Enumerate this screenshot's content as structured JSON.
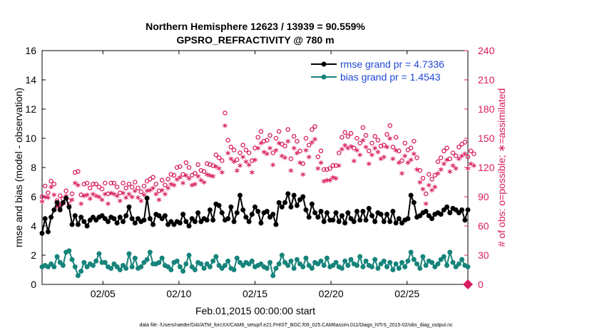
{
  "chart_data": {
    "type": "line",
    "title": "Northern Hemisphere 12623 / 13939 = 90.559%",
    "subtitle": "GPSRO_REFRACTIVITY @ 780 m",
    "xlabel": "Feb.01,2015 00:00:00 start",
    "ylabel_left": "rmse and bias (model - observation)",
    "ylabel_right": "# of obs: o=possible; ∗=assimilated",
    "footnote": "data file: /Users/raeder/DAI/ATM_forcXX/CAM6_setup/f.e21.FHIST_BGC.f09_025.CAM6assim.011/Diags_NTrS_2015-02/obs_diag_output.nc",
    "xlim": [
      1,
      29
    ],
    "ylim_left": [
      0,
      16
    ],
    "ylim_right": [
      0,
      240
    ],
    "xticks": [
      5,
      10,
      15,
      20,
      25
    ],
    "xtick_labels": [
      "02/05",
      "02/10",
      "02/15",
      "02/20",
      "02/25"
    ],
    "yticks_left": [
      "0",
      "2",
      "4",
      "6",
      "8",
      "10",
      "12",
      "14",
      "16"
    ],
    "yticks_right": [
      "0",
      "30",
      "60",
      "90",
      "120",
      "150",
      "180",
      "210",
      "240"
    ],
    "grid": false,
    "legend_position": "top-right",
    "legend": {
      "rmse": "rmse grand pr = 4.7336",
      "bias": "bias grand pr = 1.4543"
    },
    "colors": {
      "rmse": "#000000",
      "bias": "#17847b",
      "obs": "#d81b60",
      "legend_text": "#1f48d6"
    },
    "series": [
      {
        "name": "rmse grand pr = 4.7336",
        "axis": "left",
        "values": [
          3.5,
          4.5,
          3.6,
          4.6,
          5.1,
          5.6,
          5.1,
          5.6,
          5.9,
          5.3,
          4.1,
          4.7,
          4.1,
          4.6,
          4.3,
          4.0,
          4.4,
          4.6,
          4.4,
          4.6,
          4.7,
          4.5,
          4.3,
          4.6,
          4.5,
          4.2,
          4.6,
          4.3,
          4.7,
          5.3,
          4.5,
          4.2,
          4.5,
          4.3,
          4.4,
          5.9,
          4.5,
          4.1,
          4.8,
          4.7,
          4.5,
          4.7,
          4.1,
          4.3,
          4.1,
          4.3,
          4.2,
          4.8,
          4.3,
          4.0,
          4.5,
          4.3,
          4.9,
          4.3,
          4.5,
          4.4,
          5.1,
          4.4,
          5.5,
          5.4,
          4.9,
          4.4,
          4.5,
          5.3,
          4.3,
          4.9,
          6.1,
          5.1,
          4.6,
          4.3,
          4.8,
          5.3,
          5.0,
          4.2,
          4.9,
          5.0,
          4.6,
          4.8,
          4.1,
          5.6,
          5.3,
          5.6,
          6.2,
          5.3,
          6.1,
          5.4,
          5.8,
          6.0,
          5.1,
          4.6,
          5.5,
          4.9,
          4.6,
          5.0,
          4.3,
          4.9,
          4.4,
          4.4,
          4.9,
          4.3,
          4.7,
          4.2,
          4.9,
          4.5,
          4.3,
          5.0,
          4.4,
          5.0,
          4.4,
          5.2,
          4.7,
          4.3,
          4.9,
          4.8,
          4.3,
          4.8,
          4.3,
          5.0,
          4.2,
          4.5,
          4.2,
          4.4,
          4.5,
          6.1,
          5.6,
          4.6,
          4.7,
          4.9,
          5.0,
          4.7,
          4.5,
          4.8,
          4.9,
          4.8,
          5.1,
          5.3,
          4.9,
          5.2,
          5.1,
          4.9,
          5.1,
          4.4,
          5.1
        ]
      },
      {
        "name": "bias grand pr = 1.4543",
        "axis": "left",
        "values": [
          1.2,
          1.3,
          1.2,
          1.4,
          1.2,
          1.9,
          1.5,
          1.3,
          2.2,
          2.3,
          1.7,
          1.2,
          0.6,
          0.9,
          1.5,
          1.2,
          1.4,
          1.3,
          1.6,
          2.1,
          1.5,
          1.5,
          1.2,
          1.1,
          1.4,
          1.2,
          1.0,
          1.3,
          1.1,
          2.1,
          1.2,
          1.8,
          1.1,
          1.2,
          1.5,
          1.7,
          2.2,
          1.4,
          1.4,
          1.5,
          1.8,
          1.3,
          1.2,
          1.0,
          1.5,
          1.6,
          1.2,
          0.9,
          1.4,
          2.0,
          1.2,
          1.0,
          1.5,
          1.4,
          1.1,
          1.4,
          1.2,
          1.6,
          1.9,
          1.3,
          1.1,
          1.3,
          1.6,
          1.1,
          1.0,
          1.8,
          1.5,
          1.3,
          1.5,
          1.4,
          1.6,
          1.2,
          1.3,
          1.4,
          1.2,
          1.1,
          1.5,
          0.6,
          1.1,
          1.4,
          2.0,
          1.5,
          1.3,
          1.6,
          1.1,
          1.7,
          1.4,
          1.2,
          1.8,
          1.3,
          1.1,
          1.5,
          1.4,
          1.6,
          1.3,
          1.8,
          1.2,
          1.3,
          1.5,
          1.2,
          1.1,
          1.6,
          1.3,
          1.7,
          1.4,
          1.3,
          1.9,
          1.2,
          1.6,
          1.3,
          1.2,
          1.7,
          1.1,
          1.4,
          1.6,
          1.2,
          1.5,
          1.0,
          1.4,
          1.1,
          1.5,
          1.2,
          1.6,
          2.2,
          1.7,
          1.4,
          1.1,
          1.9,
          1.3,
          1.6,
          1.5,
          1.2,
          1.4,
          1.7,
          1.9,
          1.3,
          2.2,
          1.5,
          1.2,
          1.4,
          1.7,
          1.3,
          1.2
        ]
      },
      {
        "name": "o=possible",
        "axis": "right",
        "marker": "o",
        "values": [
          90,
          101,
          94,
          106,
          103,
          86,
          91,
          88,
          96,
          86,
          93,
          115,
          116,
          92,
          103,
          104,
          99,
          103,
          103,
          100,
          98,
          104,
          93,
          104,
          104,
          100,
          94,
          104,
          99,
          103,
          100,
          105,
          99,
          95,
          101,
          106,
          108,
          110,
          103,
          96,
          107,
          102,
          108,
          113,
          112,
          120,
          121,
          113,
          125,
          120,
          112,
          114,
          123,
          117,
          116,
          124,
          123,
          122,
          133,
          130,
          127,
          176,
          148,
          141,
          138,
          128,
          135,
          143,
          138,
          135,
          127,
          140,
          151,
          157,
          147,
          148,
          153,
          135,
          150,
          157,
          144,
          142,
          159,
          129,
          152,
          147,
          137,
          124,
          150,
          143,
          159,
          162,
          131,
          137,
          118,
          118,
          119,
          122,
          122,
          135,
          151,
          156,
          152,
          155,
          140,
          150,
          145,
          161,
          153,
          137,
          145,
          152,
          148,
          142,
          143,
          154,
          163,
          141,
          151,
          137,
          127,
          145,
          138,
          140,
          147,
          130,
          117,
          109,
          93,
          113,
          108,
          112,
          126,
          130,
          137,
          140,
          129,
          135,
          132,
          141,
          144,
          146,
          131,
          137,
          134
        ]
      },
      {
        "name": "∗=assimilated",
        "axis": "right",
        "marker": "*",
        "values": [
          84,
          89,
          88,
          99,
          91,
          79,
          81,
          82,
          90,
          80,
          86,
          103,
          101,
          82,
          90,
          91,
          87,
          92,
          90,
          89,
          86,
          92,
          82,
          93,
          92,
          90,
          85,
          93,
          88,
          92,
          89,
          95,
          88,
          85,
          91,
          95,
          96,
          98,
          92,
          86,
          96,
          92,
          98,
          102,
          101,
          107,
          109,
          103,
          111,
          108,
          101,
          102,
          110,
          106,
          104,
          112,
          111,
          110,
          120,
          118,
          114,
          162,
          134,
          128,
          125,
          116,
          121,
          130,
          125,
          122,
          114,
          127,
          139,
          144,
          135,
          133,
          139,
          122,
          137,
          144,
          131,
          129,
          146,
          116,
          139,
          134,
          124,
          112,
          137,
          130,
          145,
          148,
          118,
          124,
          105,
          106,
          106,
          109,
          108,
          121,
          138,
          142,
          139,
          141,
          126,
          137,
          132,
          147,
          140,
          123,
          132,
          139,
          135,
          128,
          130,
          140,
          149,
          128,
          137,
          124,
          113,
          131,
          124,
          127,
          133,
          117,
          104,
          97,
          82,
          101,
          96,
          99,
          113,
          117,
          123,
          127,
          115,
          121,
          118,
          128,
          131,
          133,
          118,
          123,
          121
        ]
      }
    ]
  }
}
